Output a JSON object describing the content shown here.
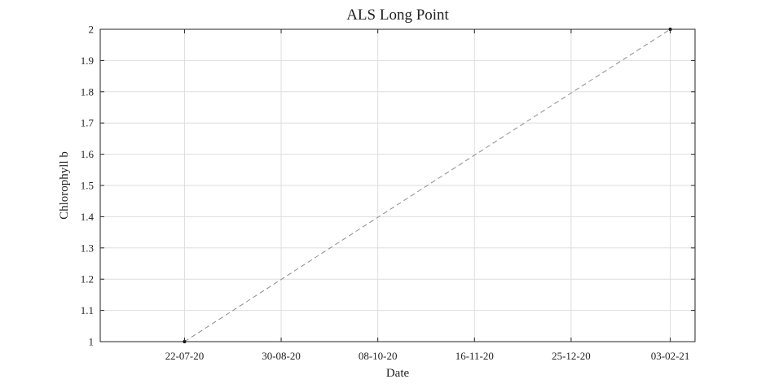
{
  "chart_data": {
    "type": "line",
    "title": "ALS Long Point",
    "xlabel": "Date",
    "ylabel": "Chlorophyll b",
    "x_ticks": [
      "22-07-20",
      "30-08-20",
      "08-10-20",
      "16-11-20",
      "25-12-20",
      "03-02-21"
    ],
    "y_ticks": [
      "1",
      "1.1",
      "1.2",
      "1.3",
      "1.4",
      "1.5",
      "1.6",
      "1.7",
      "1.8",
      "1.9",
      "2"
    ],
    "xlim": [
      "2020-06-18",
      "2021-02-13"
    ],
    "ylim": [
      1,
      2
    ],
    "grid": true,
    "series": [
      {
        "line_style": "dashed",
        "line_color": "#8c8c8c",
        "marker_color": "#000000",
        "points": [
          {
            "x": "2020-07-22",
            "y": 1
          },
          {
            "x": "2021-02-03",
            "y": 2
          }
        ]
      }
    ]
  }
}
